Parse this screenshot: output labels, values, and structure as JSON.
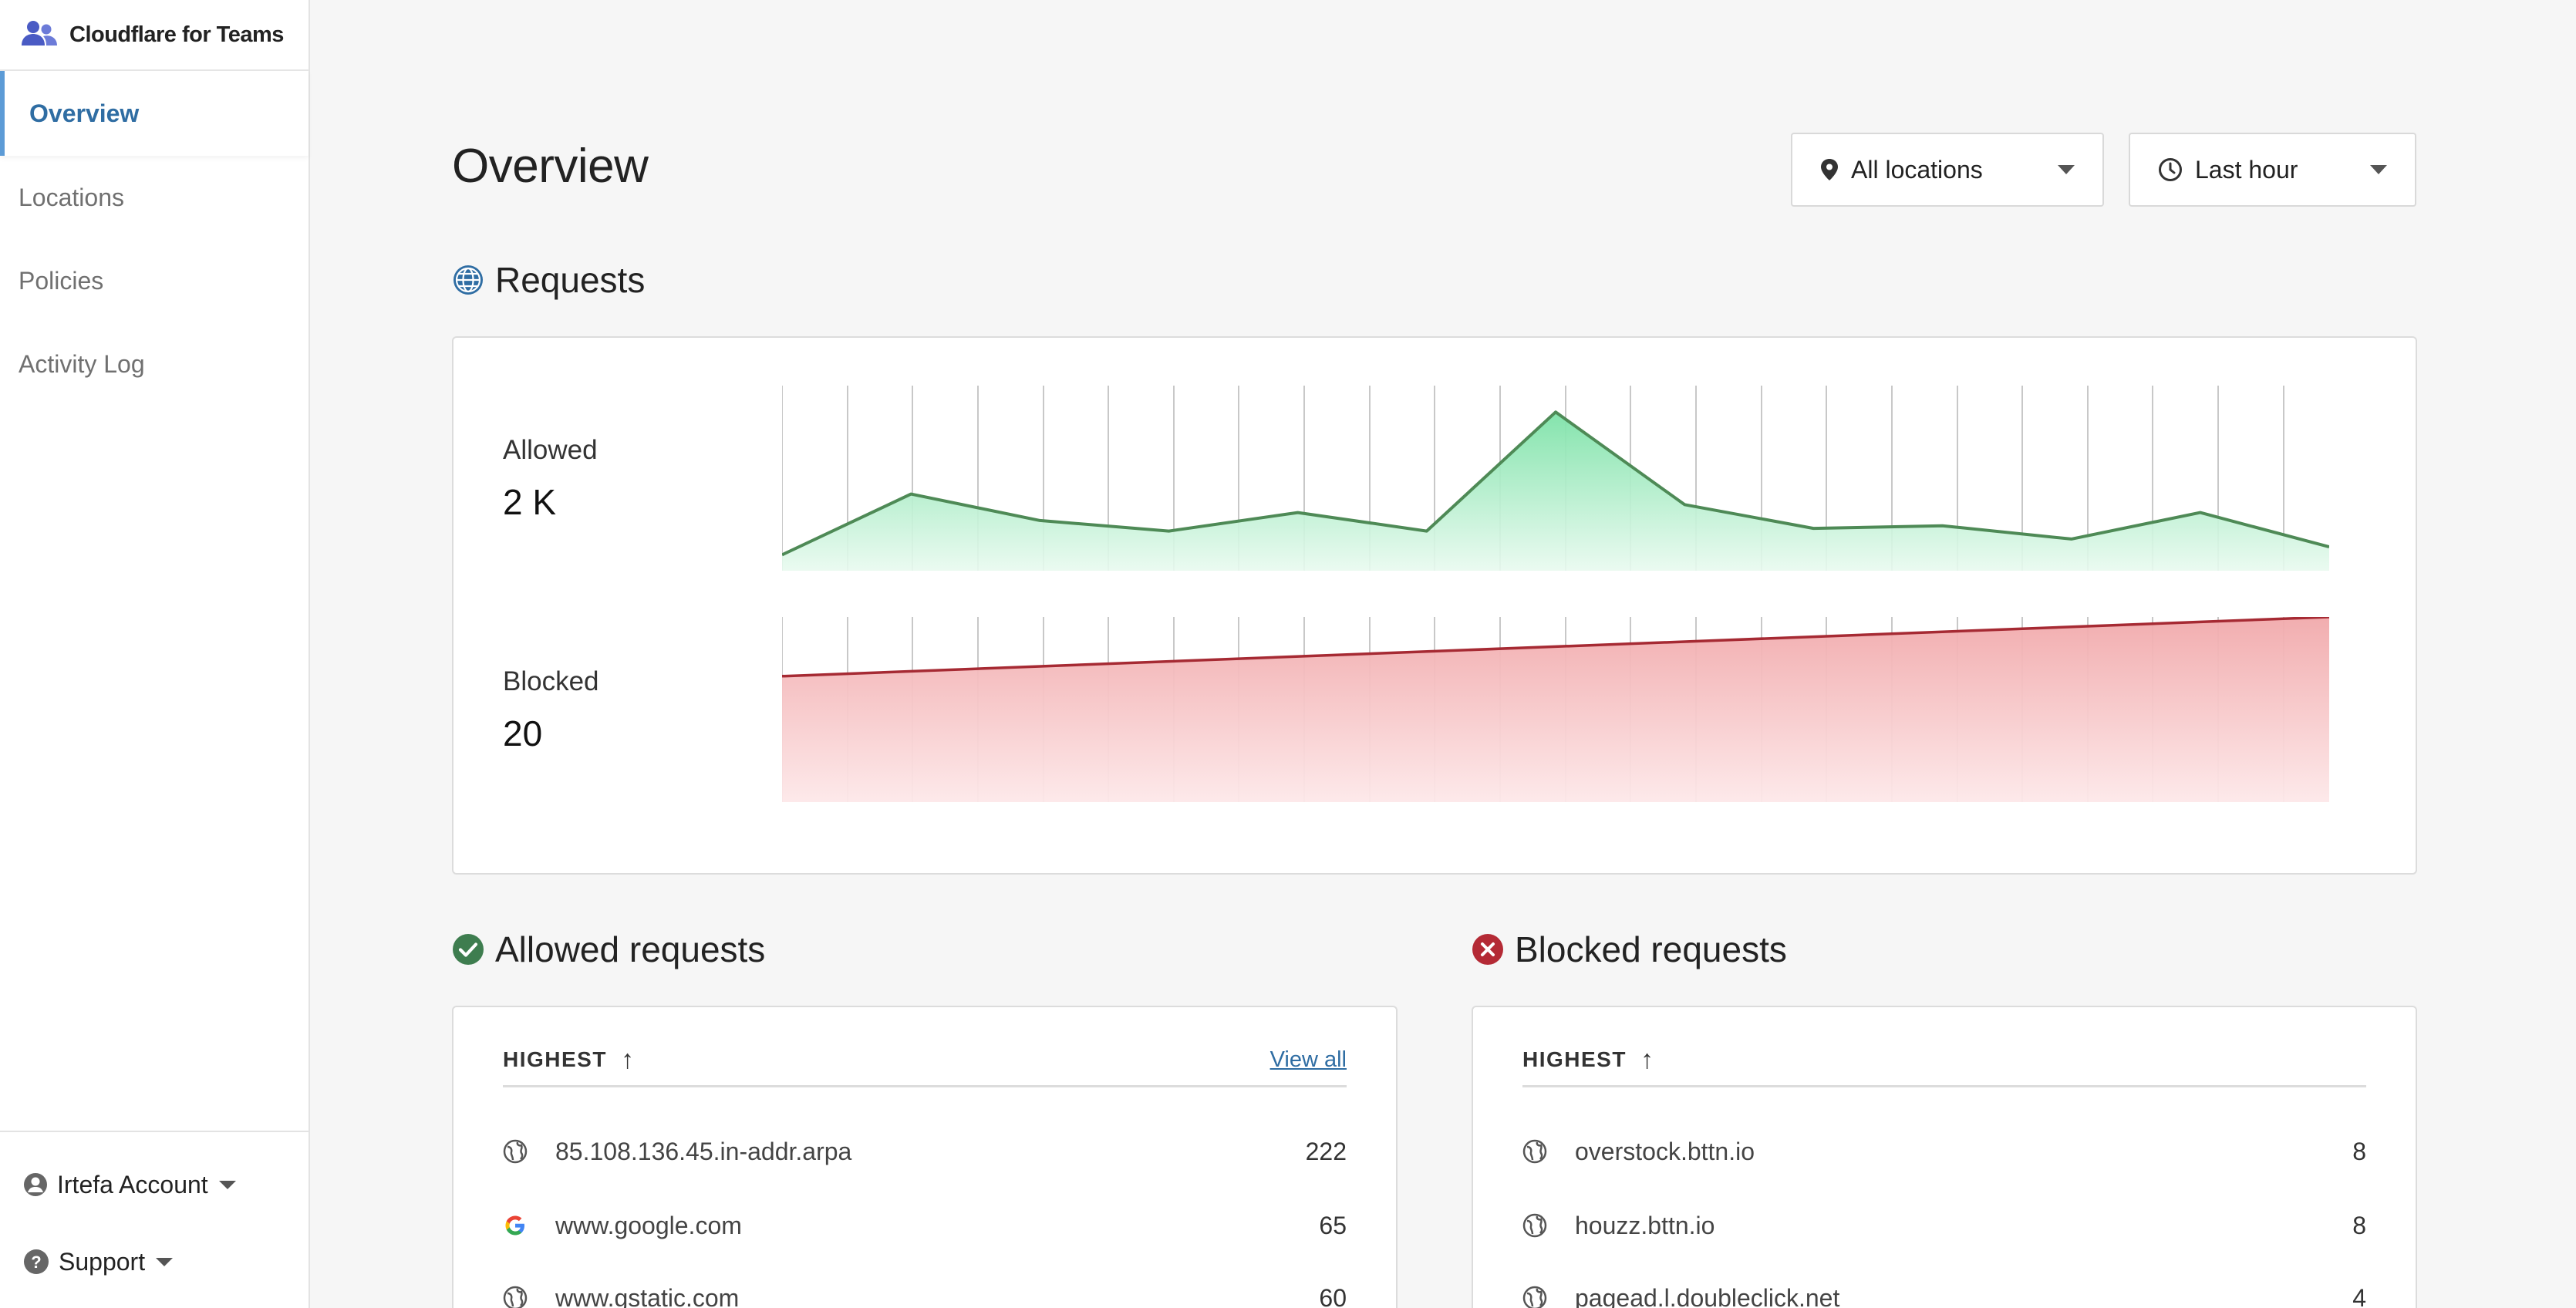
{
  "app": {
    "brand_name": "Cloudflare for Teams",
    "logo_icon": "users-icon",
    "accent_color": "#2f6da3"
  },
  "sidebar": {
    "items": [
      {
        "label": "Overview",
        "active": true
      },
      {
        "label": "Locations",
        "active": false
      },
      {
        "label": "Policies",
        "active": false
      },
      {
        "label": "Activity Log",
        "active": false
      }
    ],
    "account_label": "Irtefa Account",
    "support_label": "Support"
  },
  "header": {
    "title": "Overview",
    "location_filter": "All locations",
    "time_filter": "Last hour"
  },
  "requests": {
    "title": "Requests",
    "allowed_label": "Allowed",
    "allowed_value": "2 K",
    "allowed_color": "#4e8f5c",
    "blocked_label": "Blocked",
    "blocked_value": "20",
    "blocked_color": "#b42a35"
  },
  "chart_data": [
    {
      "type": "area",
      "series": [
        {
          "name": "Allowed",
          "values": [
            6,
            29,
            19,
            15,
            22,
            15,
            60,
            25,
            16,
            17,
            12,
            22,
            9
          ]
        }
      ],
      "ylim": [
        0,
        70
      ]
    },
    {
      "type": "area",
      "series": [
        {
          "name": "Blocked",
          "values": [
            68,
            100
          ]
        }
      ],
      "ylim": [
        0,
        100
      ]
    }
  ],
  "allowed_list": {
    "title": "Allowed requests",
    "header": "HIGHEST",
    "view_all": "View all",
    "rows": [
      {
        "name": "85.108.136.45.in-addr.arpa",
        "count": "222",
        "icon": "globe-icon"
      },
      {
        "name": "www.google.com",
        "count": "65",
        "icon": "google-icon"
      },
      {
        "name": "www.gstatic.com",
        "count": "60",
        "icon": "globe-icon"
      }
    ]
  },
  "blocked_list": {
    "title": "Blocked requests",
    "header": "HIGHEST",
    "rows": [
      {
        "name": "overstock.bttn.io",
        "count": "8",
        "icon": "globe-icon"
      },
      {
        "name": "houzz.bttn.io",
        "count": "8",
        "icon": "globe-icon"
      },
      {
        "name": "pagead.l.doubleclick.net",
        "count": "4",
        "icon": "globe-icon"
      }
    ]
  }
}
